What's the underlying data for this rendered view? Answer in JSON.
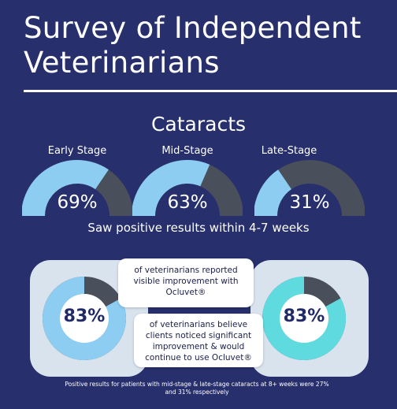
{
  "title_line1": "Survey of Independent",
  "title_line2": "Veterinarians",
  "section_title": "Cataracts",
  "caption": "Saw positive results within 4-7 weeks",
  "colors": {
    "background": "#272f6c",
    "gauge_fill": "#8ccdf1",
    "gauge_track": "#4a4f5c",
    "ring_left": "#8ccdf1",
    "ring_right": "#5fdbdf"
  },
  "stages": [
    {
      "label": "Early Stage",
      "value_text": "69%"
    },
    {
      "label": "Mid-Stage",
      "value_text": "63%"
    },
    {
      "label": "Late-Stage",
      "value_text": "31%"
    }
  ],
  "survey_cards": [
    {
      "value_text": "83%",
      "text": "of veterinarians reported visible improvement with Ocluvet®"
    },
    {
      "value_text": "83%",
      "text": "of veterinarians believe clients noticed significant improvement & would continue to use Ocluvet®"
    }
  ],
  "footnote": "Positive results for patients with mid-stage & late-stage cataracts at 8+ weeks were 27% and 31% respectively",
  "chart_data": [
    {
      "type": "gauge",
      "title": "Cataracts",
      "categories": [
        "Early Stage",
        "Mid-Stage",
        "Late-Stage"
      ],
      "values": [
        69,
        63,
        31
      ],
      "unit": "%",
      "ylim": [
        0,
        100
      ]
    },
    {
      "type": "pie",
      "categories": [
        "of veterinarians reported visible improvement with Ocluvet®",
        "of veterinarians believe clients noticed significant improvement & would continue to use Ocluvet®"
      ],
      "values": [
        83,
        83
      ],
      "unit": "%"
    }
  ]
}
